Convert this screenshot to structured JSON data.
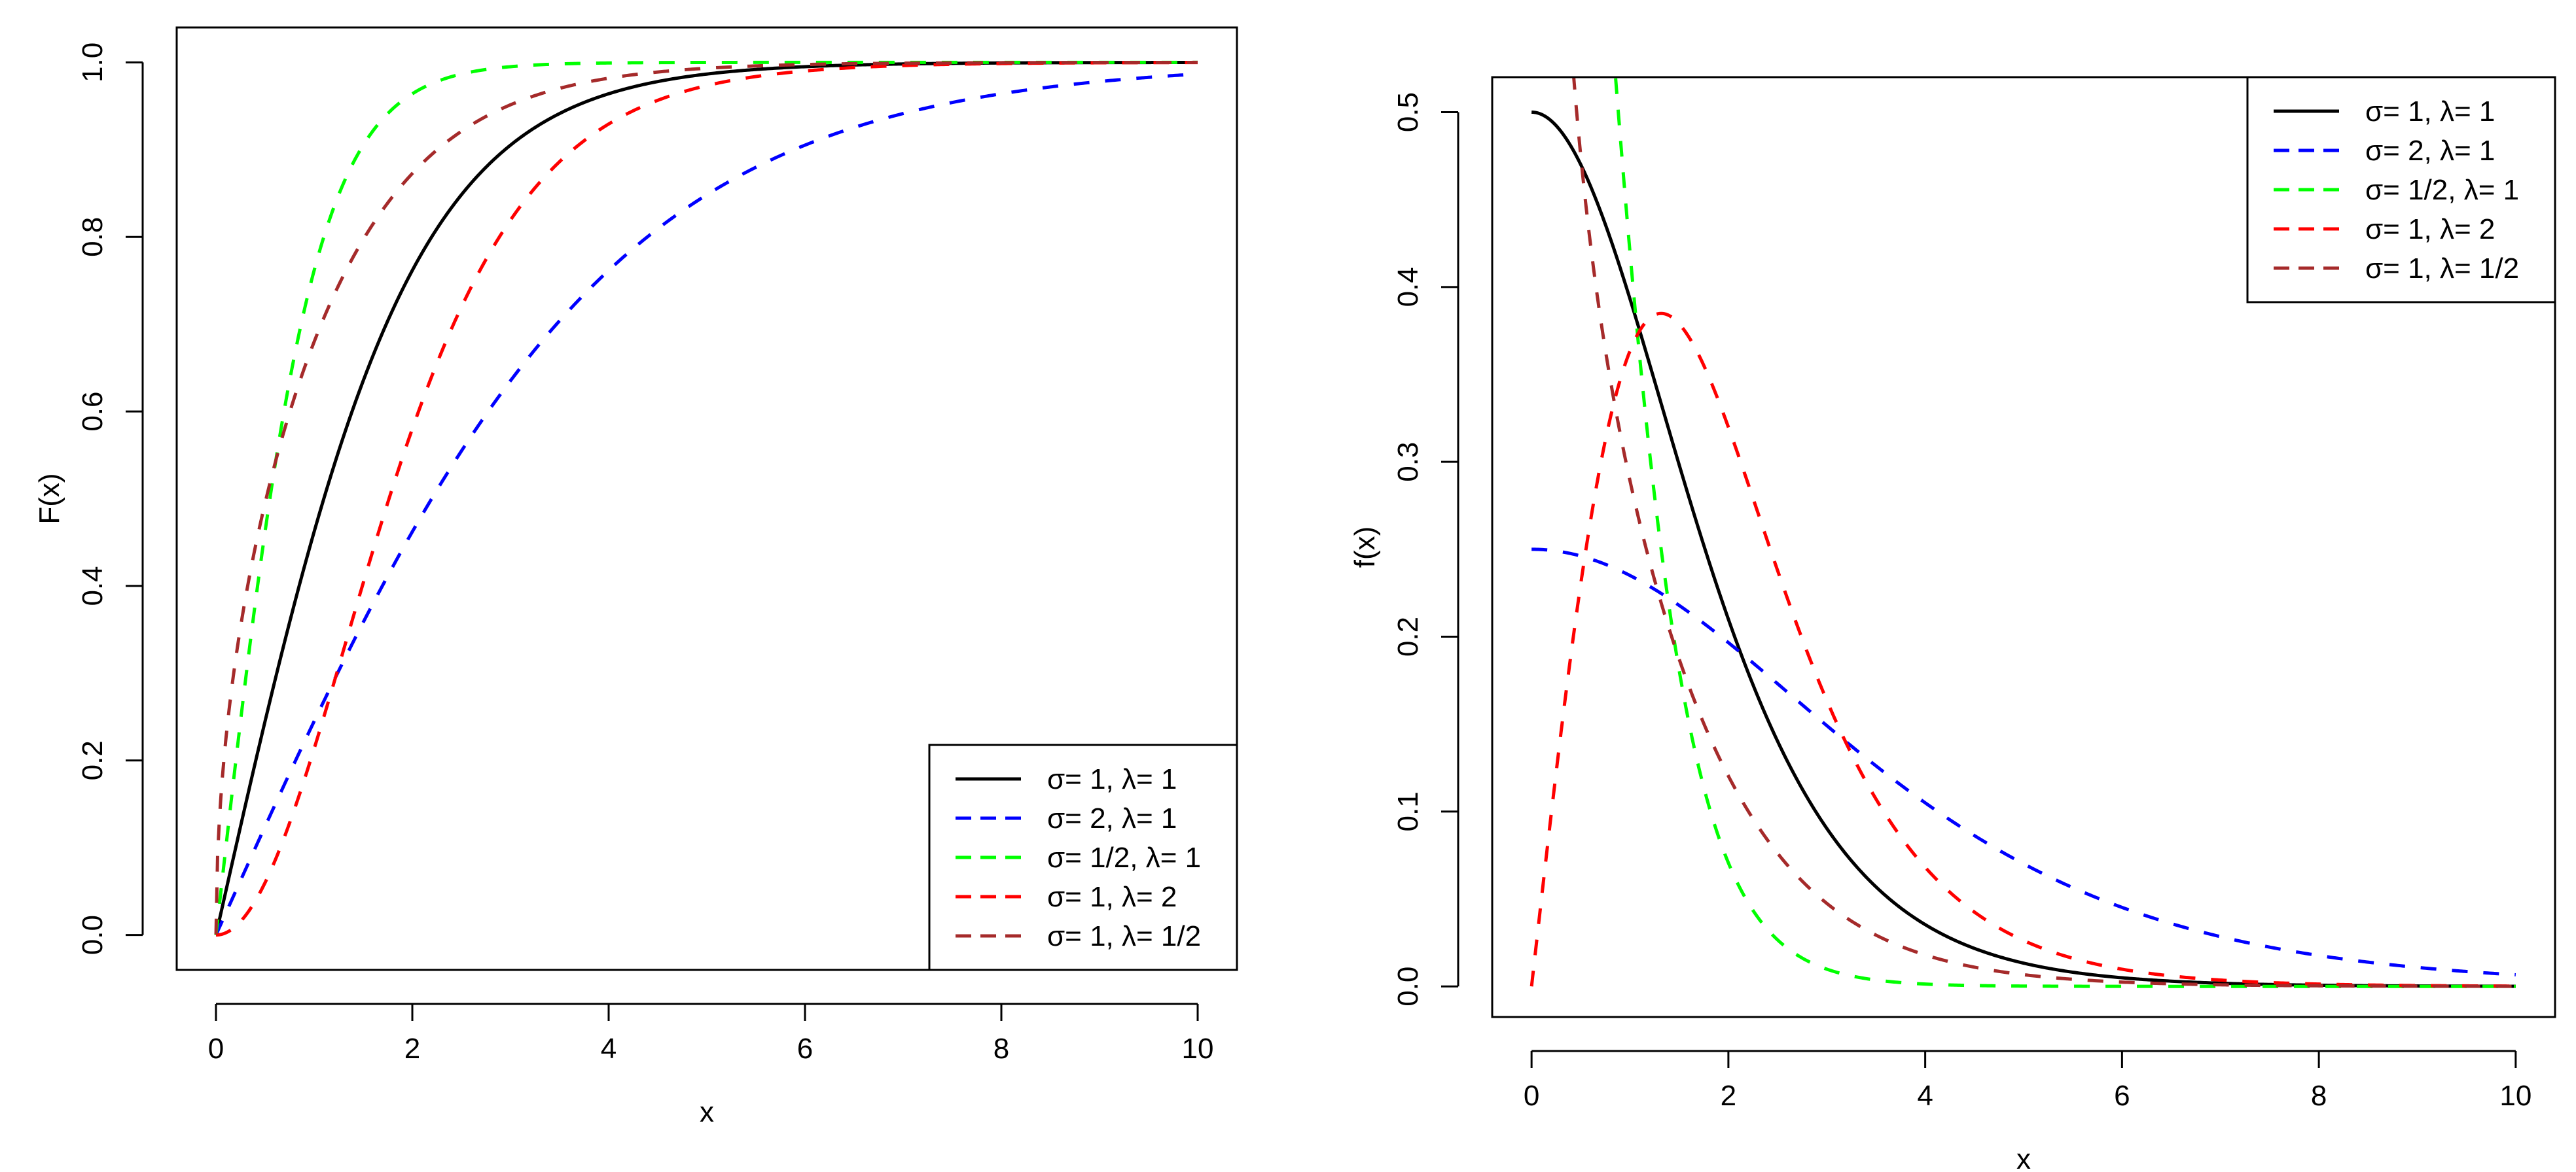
{
  "chart_data": [
    {
      "id": "cdf",
      "type": "line",
      "title": "",
      "xlabel": "x",
      "ylabel": "F(x)",
      "xlim": [
        -0.4,
        10.4
      ],
      "ylim": [
        -0.04,
        1.04
      ],
      "xticks": [
        0,
        2,
        4,
        6,
        8,
        10
      ],
      "xtick_labels": [
        "0",
        "2",
        "4",
        "6",
        "8",
        "10"
      ],
      "yticks": [
        0.0,
        0.2,
        0.4,
        0.6,
        0.8,
        1.0
      ],
      "ytick_labels": [
        "0.0",
        "0.2",
        "0.4",
        "0.6",
        "0.8",
        "1.0"
      ],
      "legend_position": "bottom-right",
      "series": [
        {
          "name": "σ= 1, λ= 1",
          "color": "#000000",
          "dash": "solid",
          "sigma": 1,
          "lambda": 1
        },
        {
          "name": "σ= 2, λ= 1",
          "color": "#0000ff",
          "dash": "dashed",
          "sigma": 2,
          "lambda": 1
        },
        {
          "name": "σ= 1/2, λ= 1",
          "color": "#00ff00",
          "dash": "dashed",
          "sigma": 0.5,
          "lambda": 1
        },
        {
          "name": "σ= 1, λ= 2",
          "color": "#ff0000",
          "dash": "dashed",
          "sigma": 1,
          "lambda": 2
        },
        {
          "name": "σ= 1, λ= 1/2",
          "color": "#a52a2a",
          "dash": "dashed",
          "sigma": 1,
          "lambda": 0.5
        }
      ]
    },
    {
      "id": "pdf",
      "type": "line",
      "title": "",
      "xlabel": "x",
      "ylabel": "f(x)",
      "xlim": [
        -0.4,
        10.4
      ],
      "ylim": [
        -0.0175,
        0.52
      ],
      "xticks": [
        0,
        2,
        4,
        6,
        8,
        10
      ],
      "xtick_labels": [
        "0",
        "2",
        "4",
        "6",
        "8",
        "10"
      ],
      "yticks": [
        0.0,
        0.1,
        0.2,
        0.3,
        0.4,
        0.5
      ],
      "ytick_labels": [
        "0.0",
        "0.1",
        "0.2",
        "0.3",
        "0.4",
        "0.5"
      ],
      "legend_position": "top-right",
      "series": [
        {
          "name": "σ= 1, λ= 1",
          "color": "#000000",
          "dash": "solid",
          "sigma": 1,
          "lambda": 1
        },
        {
          "name": "σ= 2, λ= 1",
          "color": "#0000ff",
          "dash": "dashed",
          "sigma": 2,
          "lambda": 1
        },
        {
          "name": "σ= 1/2, λ= 1",
          "color": "#00ff00",
          "dash": "dashed",
          "sigma": 0.5,
          "lambda": 1
        },
        {
          "name": "σ= 1, λ= 2",
          "color": "#ff0000",
          "dash": "dashed",
          "sigma": 1,
          "lambda": 2
        },
        {
          "name": "σ= 1, λ= 1/2",
          "color": "#a52a2a",
          "dash": "dashed",
          "sigma": 1,
          "lambda": 0.5
        }
      ]
    }
  ]
}
